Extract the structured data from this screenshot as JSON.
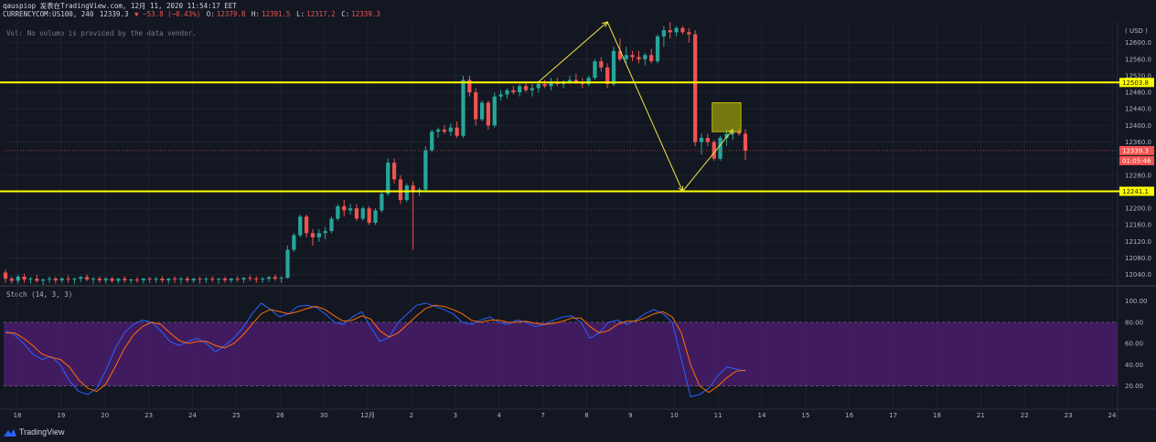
{
  "header": {
    "line1": "qauspiop 发表在TradingView.com, 12月 11, 2020 11:54:17 EET",
    "symbol": "CURRENCYCOM:US100, 240",
    "last": "12339.3",
    "change": "▼ −53.8 (−0.43%)",
    "o_label": "O:",
    "o_value": "12379.8",
    "h_label": "H:",
    "h_value": "12391.5",
    "l_label": "L:",
    "l_value": "12317.2",
    "c_label": "C:",
    "c_value": "12339.3",
    "volume_note": "Vol: No volume is provided by the data vendor.",
    "stoch_label": "Stoch (14, 3, 3)"
  },
  "footer": {
    "brand": "TradingView"
  },
  "colors": {
    "up": "#26a69a",
    "down": "#ef5350",
    "bg": "#131722",
    "level": "#ffff00",
    "stoch_k": "#2962ff",
    "stoch_d": "#ff6d00",
    "stoch_band": "#4a1c6b"
  },
  "chart_data": [
    {
      "type": "candlestick",
      "currency": "( USD )",
      "ylim": [
        12015,
        12650
      ],
      "y_ticks": [
        "12600.0",
        "12560.0",
        "12520.0",
        "12480.0",
        "12440.0",
        "12400.0",
        "12360.0",
        "12320.0",
        "12280.0",
        "12240.0",
        "12200.0",
        "12160.0",
        "12120.0",
        "12080.0",
        "12040.0"
      ],
      "x_ticks": [
        "18",
        "19",
        "20",
        "23",
        "24",
        "25",
        "26",
        "30",
        "12月",
        "2",
        "3",
        "4",
        "7",
        "8",
        "9",
        "10",
        "11",
        "14",
        "15",
        "16",
        "17",
        "18",
        "21",
        "22",
        "23",
        "24"
      ],
      "levels": [
        {
          "value": 12503.8,
          "label": "12503.8"
        },
        {
          "value": 12241.1,
          "label": "12241.1"
        }
      ],
      "last_price": {
        "value": 12339.3,
        "label": "12339.3",
        "countdown": "01:05:46"
      },
      "candles": [
        [
          12045,
          12052,
          12020,
          12030
        ],
        [
          12030,
          12036,
          12018,
          12025
        ],
        [
          12025,
          12040,
          12018,
          12035
        ],
        [
          12035,
          12042,
          12020,
          12028
        ],
        [
          12028,
          12035,
          12018,
          12030
        ],
        [
          12030,
          12040,
          12020,
          12025
        ],
        [
          12025,
          12030,
          12015,
          12028
        ],
        [
          12028,
          12035,
          12020,
          12030
        ],
        [
          12030,
          12035,
          12018,
          12026
        ],
        [
          12026,
          12034,
          12020,
          12030
        ],
        [
          12030,
          12038,
          12020,
          12028
        ],
        [
          12028,
          12033,
          12018,
          12030
        ],
        [
          12030,
          12036,
          12022,
          12034
        ],
        [
          12034,
          12040,
          12024,
          12028
        ],
        [
          12028,
          12034,
          12018,
          12030
        ],
        [
          12030,
          12036,
          12020,
          12026
        ],
        [
          12026,
          12034,
          12018,
          12030
        ],
        [
          12030,
          12035,
          12020,
          12025
        ],
        [
          12025,
          12032,
          12018,
          12030
        ],
        [
          12030,
          12036,
          12020,
          12026
        ],
        [
          12026,
          12030,
          12018,
          12028
        ],
        [
          12028,
          12034,
          12020,
          12026
        ],
        [
          12026,
          12032,
          12018,
          12030
        ],
        [
          12030,
          12034,
          12020,
          12028
        ],
        [
          12028,
          12034,
          12020,
          12030
        ],
        [
          12030,
          12036,
          12020,
          12026
        ],
        [
          12026,
          12032,
          12018,
          12030
        ],
        [
          12030,
          12036,
          12020,
          12028
        ],
        [
          12028,
          12034,
          12018,
          12030
        ],
        [
          12030,
          12036,
          12020,
          12026
        ],
        [
          12026,
          12032,
          12020,
          12030
        ],
        [
          12030,
          12034,
          12018,
          12028
        ],
        [
          12028,
          12034,
          12020,
          12030
        ],
        [
          12030,
          12036,
          12022,
          12028
        ],
        [
          12028,
          12032,
          12018,
          12030
        ],
        [
          12030,
          12035,
          12020,
          12026
        ],
        [
          12026,
          12032,
          12020,
          12030
        ],
        [
          12030,
          12036,
          12022,
          12028
        ],
        [
          12028,
          12034,
          12020,
          12032
        ],
        [
          12032,
          12038,
          12024,
          12030
        ],
        [
          12030,
          12036,
          12020,
          12028
        ],
        [
          12028,
          12034,
          12020,
          12030
        ],
        [
          12030,
          12036,
          12022,
          12034
        ],
        [
          12034,
          12040,
          12025,
          12030
        ],
        [
          12030,
          12036,
          12020,
          12032
        ],
        [
          12032,
          12110,
          12030,
          12100
        ],
        [
          12100,
          12140,
          12095,
          12135
        ],
        [
          12135,
          12185,
          12130,
          12180
        ],
        [
          12180,
          12185,
          12130,
          12140
        ],
        [
          12140,
          12150,
          12110,
          12130
        ],
        [
          12130,
          12150,
          12120,
          12140
        ],
        [
          12140,
          12155,
          12125,
          12145
        ],
        [
          12145,
          12180,
          12140,
          12175
        ],
        [
          12175,
          12210,
          12170,
          12205
        ],
        [
          12205,
          12220,
          12180,
          12195
        ],
        [
          12195,
          12210,
          12185,
          12200
        ],
        [
          12200,
          12210,
          12170,
          12175
        ],
        [
          12175,
          12205,
          12170,
          12200
        ],
        [
          12200,
          12205,
          12160,
          12165
        ],
        [
          12165,
          12200,
          12160,
          12195
        ],
        [
          12195,
          12240,
          12190,
          12235
        ],
        [
          12235,
          12320,
          12230,
          12310
        ],
        [
          12310,
          12320,
          12260,
          12270
        ],
        [
          12270,
          12280,
          12210,
          12220
        ],
        [
          12220,
          12260,
          12215,
          12255
        ],
        [
          12255,
          12265,
          12100,
          12240
        ],
        [
          12240,
          12250,
          12230,
          12245
        ],
        [
          12245,
          12350,
          12240,
          12340
        ],
        [
          12340,
          12390,
          12335,
          12385
        ],
        [
          12385,
          12395,
          12370,
          12390
        ],
        [
          12390,
          12400,
          12380,
          12385
        ],
        [
          12385,
          12405,
          12375,
          12395
        ],
        [
          12395,
          12410,
          12370,
          12375
        ],
        [
          12375,
          12520,
          12370,
          12510
        ],
        [
          12510,
          12520,
          12470,
          12480
        ],
        [
          12480,
          12490,
          12400,
          12415
        ],
        [
          12415,
          12460,
          12410,
          12455
        ],
        [
          12455,
          12460,
          12390,
          12400
        ],
        [
          12400,
          12480,
          12395,
          12470
        ],
        [
          12470,
          12485,
          12460,
          12475
        ],
        [
          12475,
          12490,
          12465,
          12485
        ],
        [
          12485,
          12495,
          12475,
          12480
        ],
        [
          12480,
          12500,
          12470,
          12495
        ],
        [
          12495,
          12505,
          12480,
          12485
        ],
        [
          12485,
          12500,
          12470,
          12490
        ],
        [
          12490,
          12505,
          12480,
          12500
        ],
        [
          12500,
          12510,
          12490,
          12495
        ],
        [
          12495,
          12515,
          12485,
          12505
        ],
        [
          12505,
          12515,
          12495,
          12500
        ],
        [
          12500,
          12510,
          12490,
          12505
        ],
        [
          12505,
          12520,
          12500,
          12510
        ],
        [
          12510,
          12525,
          12500,
          12505
        ],
        [
          12505,
          12515,
          12490,
          12500
        ],
        [
          12500,
          12520,
          12495,
          12515
        ],
        [
          12515,
          12560,
          12510,
          12555
        ],
        [
          12555,
          12565,
          12530,
          12540
        ],
        [
          12540,
          12550,
          12490,
          12500
        ],
        [
          12500,
          12590,
          12495,
          12580
        ],
        [
          12580,
          12610,
          12555,
          12560
        ],
        [
          12560,
          12590,
          12550,
          12570
        ],
        [
          12570,
          12580,
          12555,
          12565
        ],
        [
          12565,
          12580,
          12550,
          12560
        ],
        [
          12560,
          12575,
          12545,
          12570
        ],
        [
          12570,
          12585,
          12550,
          12555
        ],
        [
          12555,
          12620,
          12550,
          12615
        ],
        [
          12615,
          12640,
          12590,
          12630
        ],
        [
          12630,
          12650,
          12610,
          12625
        ],
        [
          12625,
          12640,
          12615,
          12635
        ],
        [
          12635,
          12640,
          12620,
          12625
        ],
        [
          12625,
          12635,
          12600,
          12620
        ],
        [
          12620,
          12630,
          12350,
          12360
        ],
        [
          12360,
          12380,
          12330,
          12370
        ],
        [
          12370,
          12380,
          12350,
          12360
        ],
        [
          12360,
          12365,
          12315,
          12320
        ],
        [
          12320,
          12375,
          12315,
          12370
        ],
        [
          12370,
          12390,
          12350,
          12380
        ],
        [
          12380,
          12390,
          12365,
          12385
        ],
        [
          12385,
          12392,
          12375,
          12380
        ],
        [
          12380,
          12391,
          12317,
          12339
        ]
      ],
      "annotations": [
        {
          "kind": "arrow-line",
          "points": [
            [
              12505,
              0
            ],
            [
              12650,
              1
            ],
            [
              12241,
              2
            ],
            [
              12390,
              3
            ]
          ]
        },
        {
          "kind": "box",
          "top": 12455,
          "bottom": 12385
        }
      ]
    },
    {
      "type": "line",
      "ylim": [
        0,
        110
      ],
      "y_ticks": [
        "100.00",
        "80.00",
        "60.00",
        "40.00",
        "20.00"
      ],
      "band": [
        20,
        80
      ],
      "series": [
        {
          "values": [
            72,
            68,
            60,
            50,
            45,
            48,
            40,
            25,
            15,
            12,
            18,
            35,
            55,
            70,
            78,
            82,
            80,
            72,
            62,
            58,
            62,
            65,
            60,
            52,
            58,
            65,
            75,
            88,
            98,
            92,
            85,
            88,
            95,
            96,
            94,
            88,
            80,
            78,
            85,
            90,
            75,
            62,
            66,
            80,
            88,
            96,
            98,
            95,
            92,
            88,
            80,
            78,
            82,
            85,
            80,
            78,
            82,
            80,
            76,
            78,
            82,
            85,
            86,
            80,
            65,
            70,
            80,
            82,
            78,
            82,
            88,
            92,
            88,
            80,
            45,
            10,
            12,
            18,
            30,
            38,
            36,
            34
          ]
        },
        {
          "values": [
            70,
            70,
            65,
            58,
            50,
            47,
            45,
            38,
            26,
            18,
            15,
            22,
            38,
            55,
            68,
            76,
            80,
            78,
            70,
            63,
            60,
            62,
            62,
            58,
            56,
            60,
            68,
            78,
            88,
            92,
            90,
            88,
            90,
            93,
            95,
            92,
            86,
            81,
            82,
            86,
            83,
            72,
            66,
            70,
            78,
            86,
            93,
            96,
            95,
            92,
            88,
            82,
            80,
            82,
            82,
            80,
            80,
            81,
            79,
            78,
            79,
            81,
            84,
            84,
            76,
            70,
            72,
            78,
            81,
            81,
            84,
            88,
            90,
            85,
            70,
            40,
            20,
            14,
            20,
            28,
            34,
            35
          ]
        }
      ]
    }
  ]
}
